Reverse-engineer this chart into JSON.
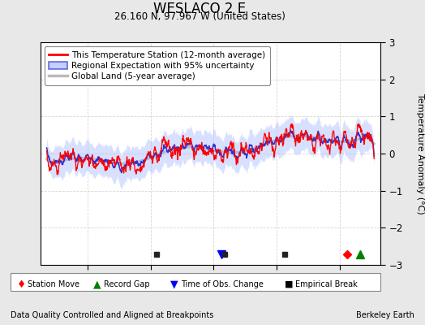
{
  "title": "WESLACO 2 E",
  "subtitle": "26.160 N, 97.967 W (United States)",
  "ylabel": "Temperature Anomaly (°C)",
  "footer_left": "Data Quality Controlled and Aligned at Breakpoints",
  "footer_right": "Berkeley Earth",
  "xlim": [
    1905,
    2013
  ],
  "ylim": [
    -3,
    3
  ],
  "yticks": [
    -3,
    -2,
    -1,
    0,
    1,
    2,
    3
  ],
  "xticks": [
    1920,
    1940,
    1960,
    1980,
    2000
  ],
  "station_color": "#FF0000",
  "regional_color": "#3333CC",
  "regional_fill_color": "#AABBFF",
  "global_color": "#BBBBBB",
  "background_color": "#E8E8E8",
  "plot_bg_color": "#FFFFFF",
  "legend_labels": [
    "This Temperature Station (12-month average)",
    "Regional Expectation with 95% uncertainty",
    "Global Land (5-year average)"
  ],
  "marker_annotations": {
    "station_move": [
      2002.5
    ],
    "record_gap": [
      2006.5
    ],
    "time_of_obs": [
      1962.5
    ],
    "empirical_break": [
      1942.0,
      1963.5,
      1982.5
    ]
  },
  "random_seed": 17,
  "start_year": 1907,
  "end_year": 2011
}
